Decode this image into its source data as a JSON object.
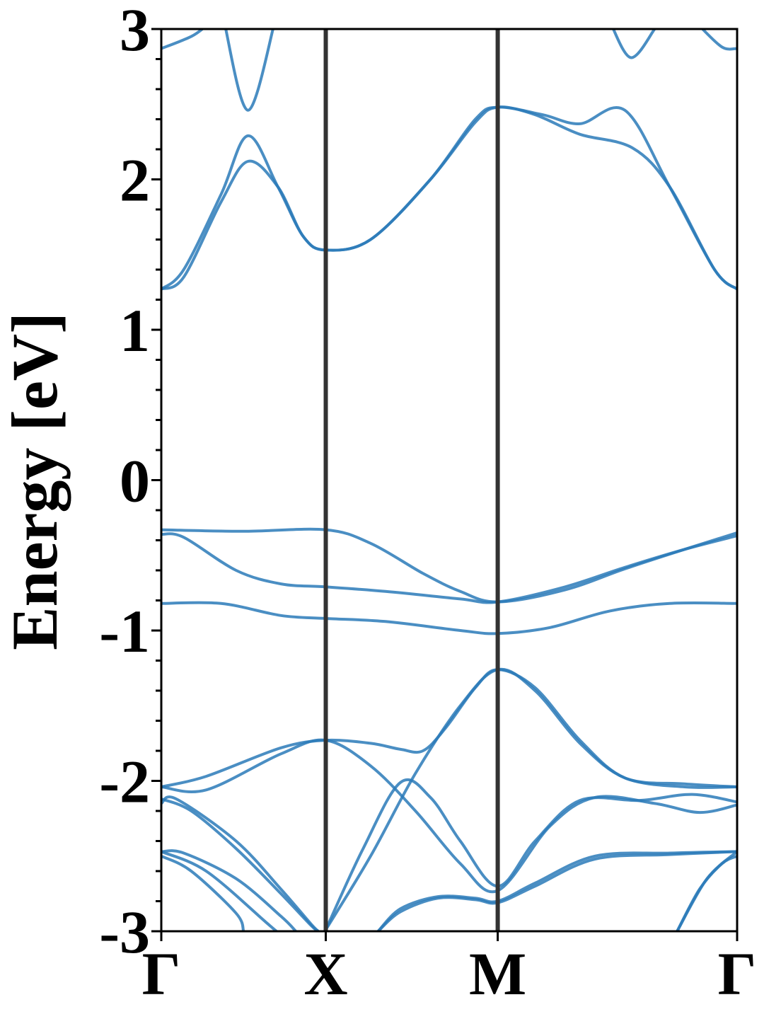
{
  "chart_data": {
    "type": "line",
    "title": "",
    "xlabel": "",
    "ylabel": "Energy [eV]",
    "ylim": [
      -3,
      3
    ],
    "xlim": [
      0,
      3.851
    ],
    "yticks": [
      -3,
      -2,
      -1,
      0,
      1,
      2,
      3
    ],
    "ytick_labels": [
      "-3",
      "-2",
      "-1",
      "0",
      "1",
      "2",
      "3"
    ],
    "high_symmetry_points": [
      {
        "label": "Γ",
        "x": 0
      },
      {
        "label": "X",
        "x": 1.1
      },
      {
        "label": "M",
        "x": 2.25
      },
      {
        "label": "Γ",
        "x": 3.851
      }
    ],
    "grid": false,
    "line_color": "#2a7ab8",
    "divider_color": "#333333",
    "series": [
      {
        "values": [
          [
            0,
            -0.33
          ],
          [
            0.55,
            -0.34
          ],
          [
            1.1,
            -0.33
          ],
          [
            1.4,
            -0.42
          ],
          [
            1.75,
            -0.62
          ],
          [
            2.0,
            -0.74
          ],
          [
            2.25,
            -0.81
          ],
          [
            2.7,
            -0.73
          ],
          [
            3.1,
            -0.59
          ],
          [
            3.5,
            -0.46
          ],
          [
            3.851,
            -0.35
          ]
        ]
      },
      {
        "values": [
          [
            0,
            -0.36
          ],
          [
            0.15,
            -0.38
          ],
          [
            0.5,
            -0.6
          ],
          [
            0.8,
            -0.69
          ],
          [
            1.1,
            -0.71
          ],
          [
            1.5,
            -0.74
          ],
          [
            2.0,
            -0.79
          ],
          [
            2.25,
            -0.81
          ],
          [
            2.7,
            -0.71
          ],
          [
            3.1,
            -0.58
          ],
          [
            3.5,
            -0.46
          ],
          [
            3.851,
            -0.37
          ]
        ]
      },
      {
        "values": [
          [
            0,
            -0.82
          ],
          [
            0.4,
            -0.82
          ],
          [
            0.8,
            -0.9
          ],
          [
            1.1,
            -0.92
          ],
          [
            1.5,
            -0.94
          ],
          [
            2.0,
            -1.0
          ],
          [
            2.25,
            -1.02
          ],
          [
            2.6,
            -0.98
          ],
          [
            3.0,
            -0.87
          ],
          [
            3.4,
            -0.82
          ],
          [
            3.851,
            -0.82
          ]
        ]
      },
      {
        "values": [
          [
            0,
            1.27
          ],
          [
            0.15,
            1.4
          ],
          [
            0.4,
            1.9
          ],
          [
            0.58,
            2.29
          ],
          [
            0.78,
            1.95
          ],
          [
            0.95,
            1.62
          ],
          [
            1.1,
            1.53
          ],
          [
            1.4,
            1.6
          ],
          [
            1.8,
            2.0
          ],
          [
            2.1,
            2.4
          ],
          [
            2.25,
            2.48
          ],
          [
            2.55,
            2.43
          ],
          [
            2.8,
            2.37
          ],
          [
            3.1,
            2.46
          ],
          [
            3.4,
            1.95
          ],
          [
            3.7,
            1.4
          ],
          [
            3.851,
            1.27
          ]
        ]
      },
      {
        "values": [
          [
            0,
            1.27
          ],
          [
            0.15,
            1.35
          ],
          [
            0.4,
            1.85
          ],
          [
            0.58,
            2.12
          ],
          [
            0.78,
            1.95
          ],
          [
            0.95,
            1.62
          ],
          [
            1.1,
            1.53
          ],
          [
            1.4,
            1.6
          ],
          [
            1.8,
            2.0
          ],
          [
            2.1,
            2.38
          ],
          [
            2.25,
            2.48
          ],
          [
            2.5,
            2.43
          ],
          [
            2.8,
            2.3
          ],
          [
            3.15,
            2.21
          ],
          [
            3.4,
            1.95
          ],
          [
            3.7,
            1.4
          ],
          [
            3.851,
            1.27
          ]
        ]
      },
      {
        "values": [
          [
            0,
            2.87
          ],
          [
            0.2,
            2.95
          ],
          [
            0.3,
            3.02
          ]
        ]
      },
      {
        "values": [
          [
            0.42,
            3.05
          ],
          [
            0.58,
            2.46
          ],
          [
            0.76,
            3.05
          ]
        ]
      },
      {
        "values": [
          [
            3.0,
            3.05
          ],
          [
            3.14,
            2.81
          ],
          [
            3.3,
            3.0
          ]
        ]
      },
      {
        "values": [
          [
            3.6,
            3.02
          ],
          [
            3.75,
            2.88
          ],
          [
            3.851,
            2.87
          ]
        ]
      },
      {
        "values": [
          [
            0,
            -2.04
          ],
          [
            0.3,
            -1.97
          ],
          [
            0.8,
            -1.78
          ],
          [
            1.1,
            -1.73
          ],
          [
            1.4,
            -1.75
          ],
          [
            1.6,
            -1.79
          ],
          [
            1.75,
            -1.8
          ],
          [
            1.9,
            -1.65
          ],
          [
            2.1,
            -1.38
          ],
          [
            2.25,
            -1.26
          ],
          [
            2.5,
            -1.38
          ],
          [
            2.8,
            -1.73
          ],
          [
            3.1,
            -1.98
          ],
          [
            3.5,
            -2.02
          ],
          [
            3.851,
            -2.04
          ]
        ]
      },
      {
        "values": [
          [
            0,
            -2.04
          ],
          [
            0.3,
            -2.06
          ],
          [
            0.8,
            -1.82
          ],
          [
            1.1,
            -1.73
          ],
          [
            1.4,
            -1.9
          ],
          [
            1.7,
            -2.2
          ],
          [
            2.0,
            -2.55
          ],
          [
            2.25,
            -2.73
          ],
          [
            2.6,
            -2.3
          ],
          [
            2.9,
            -2.11
          ],
          [
            3.3,
            -2.15
          ],
          [
            3.6,
            -2.21
          ],
          [
            3.851,
            -2.16
          ]
        ]
      },
      {
        "values": [
          [
            1.1,
            -2.99
          ],
          [
            1.35,
            -2.45
          ],
          [
            1.6,
            -2.01
          ],
          [
            1.8,
            -2.11
          ],
          [
            2.0,
            -2.4
          ],
          [
            2.25,
            -2.7
          ],
          [
            2.5,
            -2.4
          ],
          [
            2.8,
            -2.13
          ],
          [
            3.2,
            -2.13
          ],
          [
            3.55,
            -2.09
          ],
          [
            3.851,
            -2.14
          ]
        ]
      },
      {
        "values": [
          [
            1.1,
            -2.99
          ],
          [
            1.4,
            -2.5
          ],
          [
            1.7,
            -1.95
          ],
          [
            2.0,
            -1.5
          ],
          [
            2.25,
            -1.26
          ],
          [
            2.5,
            -1.4
          ],
          [
            2.8,
            -1.75
          ],
          [
            3.1,
            -1.98
          ],
          [
            3.5,
            -2.04
          ],
          [
            3.851,
            -2.04
          ]
        ]
      },
      {
        "values": [
          [
            0,
            -2.12
          ],
          [
            0.2,
            -2.2
          ],
          [
            0.5,
            -2.45
          ],
          [
            0.8,
            -2.75
          ],
          [
            1.0,
            -2.96
          ],
          [
            1.05,
            -3.0
          ]
        ]
      },
      {
        "values": [
          [
            0,
            -2.15
          ],
          [
            0.1,
            -2.12
          ],
          [
            0.5,
            -2.4
          ],
          [
            0.8,
            -2.72
          ],
          [
            1.0,
            -2.95
          ],
          [
            1.05,
            -3.0
          ]
        ]
      },
      {
        "values": [
          [
            0,
            -2.47
          ],
          [
            0.15,
            -2.48
          ],
          [
            0.5,
            -2.65
          ],
          [
            0.8,
            -2.9
          ],
          [
            0.9,
            -3.0
          ]
        ]
      },
      {
        "values": [
          [
            0,
            -2.5
          ],
          [
            0.2,
            -2.6
          ],
          [
            0.5,
            -2.88
          ],
          [
            0.55,
            -3.0
          ]
        ]
      },
      {
        "values": [
          [
            0,
            -2.47
          ],
          [
            0.3,
            -2.6
          ],
          [
            0.7,
            -2.94
          ],
          [
            0.77,
            -3.0
          ]
        ]
      },
      {
        "values": [
          [
            1.45,
            -3.0
          ],
          [
            1.6,
            -2.85
          ],
          [
            1.85,
            -2.77
          ],
          [
            2.1,
            -2.78
          ],
          [
            2.25,
            -2.8
          ],
          [
            2.5,
            -2.68
          ],
          [
            2.9,
            -2.5
          ],
          [
            3.4,
            -2.48
          ],
          [
            3.851,
            -2.47
          ]
        ]
      },
      {
        "values": [
          [
            1.45,
            -3.0
          ],
          [
            1.6,
            -2.87
          ],
          [
            1.85,
            -2.78
          ],
          [
            2.1,
            -2.79
          ],
          [
            2.25,
            -2.81
          ],
          [
            2.5,
            -2.7
          ],
          [
            2.9,
            -2.52
          ],
          [
            3.4,
            -2.49
          ],
          [
            3.851,
            -2.47
          ]
        ]
      },
      {
        "values": [
          [
            3.45,
            -3.0
          ],
          [
            3.6,
            -2.72
          ],
          [
            3.75,
            -2.55
          ],
          [
            3.851,
            -2.5
          ]
        ]
      },
      {
        "values": [
          [
            3.45,
            -3.0
          ],
          [
            3.65,
            -2.65
          ],
          [
            3.851,
            -2.47
          ]
        ]
      }
    ]
  }
}
